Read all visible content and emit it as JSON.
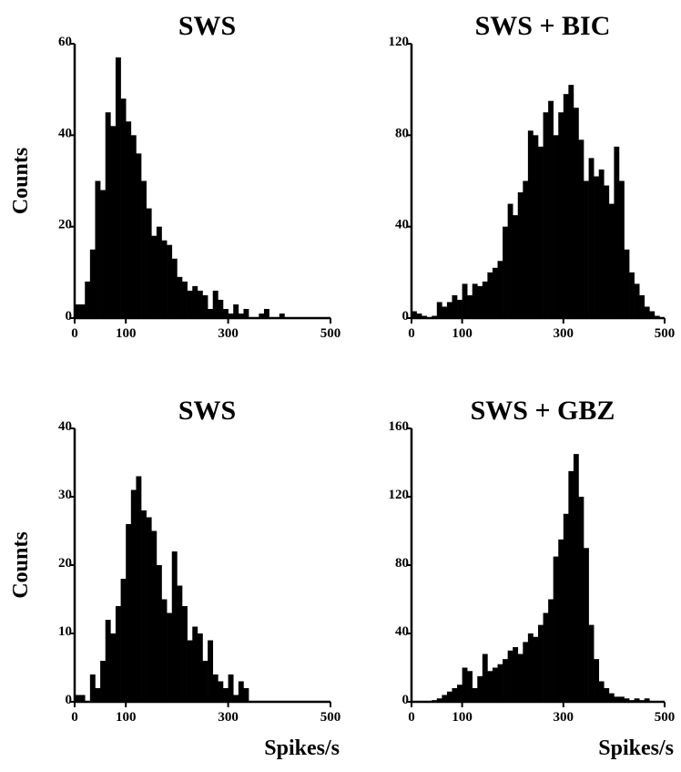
{
  "chart_data": [
    {
      "type": "histogram",
      "title": "SWS",
      "ylabel": "Counts",
      "color": "#000000",
      "bins": [
        0,
        10,
        20,
        30,
        40,
        50,
        60,
        70,
        80,
        90,
        100,
        110,
        120,
        130,
        140,
        150,
        160,
        170,
        180,
        190,
        200,
        210,
        220,
        230,
        240,
        250,
        260,
        270,
        280,
        290,
        300,
        310,
        320,
        330,
        340,
        350,
        360,
        370,
        380,
        390,
        400,
        410,
        420,
        430,
        440,
        450,
        460,
        470,
        480,
        490,
        500
      ],
      "counts": [
        3,
        3,
        8,
        15,
        30,
        28,
        45,
        42,
        57,
        48,
        43,
        40,
        36,
        30,
        24,
        18,
        20,
        17,
        16,
        13,
        9,
        8,
        6,
        7,
        6,
        5,
        2,
        6,
        4,
        2,
        1,
        3,
        1,
        2,
        0,
        0,
        1,
        2,
        0,
        0,
        1,
        0,
        0,
        0,
        0,
        0,
        0,
        0,
        0,
        0
      ],
      "xlim": [
        0,
        500
      ],
      "ylim": [
        0,
        60
      ],
      "xticks": [
        0,
        100,
        300,
        500
      ],
      "yticks": [
        0,
        20,
        40,
        60
      ]
    },
    {
      "type": "histogram",
      "title": "SWS + BIC",
      "color": "#000000",
      "bins": [
        0,
        10,
        20,
        30,
        40,
        50,
        60,
        70,
        80,
        90,
        100,
        110,
        120,
        130,
        140,
        150,
        160,
        170,
        180,
        190,
        200,
        210,
        220,
        230,
        240,
        250,
        260,
        270,
        280,
        290,
        300,
        310,
        320,
        330,
        340,
        350,
        360,
        370,
        380,
        390,
        400,
        410,
        420,
        430,
        440,
        450,
        460,
        470,
        480,
        490,
        500
      ],
      "counts": [
        3,
        2,
        1,
        0,
        1,
        7,
        5,
        7,
        10,
        8,
        15,
        10,
        15,
        14,
        16,
        20,
        22,
        25,
        40,
        50,
        45,
        55,
        60,
        82,
        80,
        75,
        90,
        95,
        80,
        90,
        98,
        102,
        92,
        78,
        60,
        70,
        62,
        65,
        58,
        50,
        75,
        60,
        30,
        20,
        15,
        10,
        5,
        3,
        1,
        0
      ],
      "xlim": [
        0,
        500
      ],
      "ylim": [
        0,
        120
      ],
      "xticks": [
        0,
        100,
        300,
        500
      ],
      "yticks": [
        0,
        40,
        80,
        120
      ]
    },
    {
      "type": "histogram",
      "title": "SWS",
      "ylabel": "Counts",
      "xlabel": "Spikes/s",
      "color": "#000000",
      "bins": [
        0,
        10,
        20,
        30,
        40,
        50,
        60,
        70,
        80,
        90,
        100,
        110,
        120,
        130,
        140,
        150,
        160,
        170,
        180,
        190,
        200,
        210,
        220,
        230,
        240,
        250,
        260,
        270,
        280,
        290,
        300,
        310,
        320,
        330,
        340,
        350,
        360,
        370,
        380,
        390,
        400,
        410,
        420,
        430,
        440,
        450,
        460,
        470,
        480,
        490,
        500
      ],
      "counts": [
        1,
        1,
        0,
        4,
        2,
        6,
        12,
        10,
        14,
        18,
        26,
        31,
        33,
        28,
        27,
        25,
        20,
        15,
        13,
        22,
        17,
        14,
        9,
        11,
        10,
        6,
        9,
        4,
        3,
        2,
        4,
        1,
        3,
        2,
        0,
        0,
        0,
        0,
        0,
        0,
        0,
        0,
        0,
        0,
        0,
        0,
        0,
        0,
        0,
        0
      ],
      "xlim": [
        0,
        500
      ],
      "ylim": [
        0,
        40
      ],
      "xticks": [
        0,
        100,
        300,
        500
      ],
      "yticks": [
        0,
        10,
        20,
        30,
        40
      ]
    },
    {
      "type": "histogram",
      "title": "SWS + GBZ",
      "xlabel": "Spikes/s",
      "color": "#000000",
      "bins": [
        0,
        10,
        20,
        30,
        40,
        50,
        60,
        70,
        80,
        90,
        100,
        110,
        120,
        130,
        140,
        150,
        160,
        170,
        180,
        190,
        200,
        210,
        220,
        230,
        240,
        250,
        260,
        270,
        280,
        290,
        300,
        310,
        320,
        330,
        340,
        350,
        360,
        370,
        380,
        390,
        400,
        410,
        420,
        430,
        440,
        450,
        460,
        470,
        480,
        490,
        500
      ],
      "counts": [
        0,
        0,
        0,
        0,
        1,
        2,
        4,
        6,
        8,
        10,
        20,
        18,
        8,
        15,
        28,
        18,
        20,
        22,
        25,
        30,
        32,
        28,
        35,
        40,
        38,
        45,
        52,
        60,
        85,
        95,
        110,
        135,
        145,
        120,
        90,
        45,
        25,
        12,
        8,
        5,
        3,
        3,
        2,
        1,
        2,
        1,
        2,
        0,
        0,
        0
      ],
      "xlim": [
        0,
        500
      ],
      "ylim": [
        0,
        160
      ],
      "xticks": [
        0,
        100,
        300,
        500
      ],
      "yticks": [
        0,
        40,
        80,
        120,
        160
      ]
    }
  ]
}
